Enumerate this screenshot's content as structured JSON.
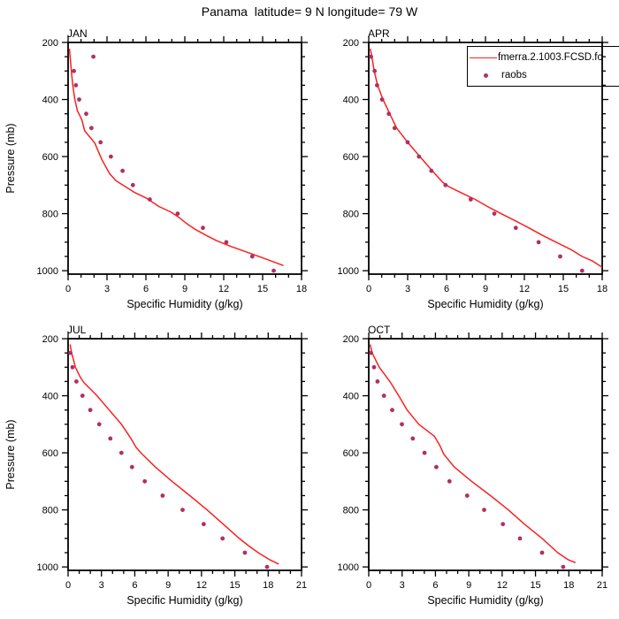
{
  "title": "Panama  latitude= 9 N longitude= 79 W",
  "axes": {
    "xlabel": "Specific Humidity (g/kg)",
    "ylabel": "Pressure (mb)",
    "y_axis_inverted": true
  },
  "colors": {
    "model_line": "#f92020",
    "raobs_marker": "#b03060",
    "frame": "#000000",
    "text": "#000000"
  },
  "legend": {
    "position": "top-right, clipped at figure edge",
    "items": [
      {
        "type": "line",
        "label": "fmerra.2.1003.FCSD.fc",
        "color": "#f92020"
      },
      {
        "type": "marker",
        "label": "raobs",
        "color": "#b03060"
      }
    ]
  },
  "chart_data": [
    {
      "month": "JAN",
      "type": "line+scatter",
      "x_range": [
        0,
        18
      ],
      "x_major_step": 3,
      "x_minor_step": 1,
      "y_range": [
        200,
        1000
      ],
      "y_major_step": 200,
      "y_minor_step": 50,
      "point_format": [
        "pressure_mb",
        "specific_humidity_g_per_kg"
      ],
      "series": [
        {
          "name": "fmerra.2.1003.FCSD.fc",
          "style": "line",
          "points": [
            [
              222,
              0.1
            ],
            [
              250,
              0.16
            ],
            [
              300,
              0.25
            ],
            [
              350,
              0.36
            ],
            [
              400,
              0.52
            ],
            [
              440,
              0.72
            ],
            [
              470,
              1.05
            ],
            [
              510,
              1.28
            ],
            [
              552,
              2.05
            ],
            [
              610,
              2.6
            ],
            [
              660,
              3.2
            ],
            [
              685,
              3.7
            ],
            [
              705,
              4.4
            ],
            [
              725,
              5.1
            ],
            [
              745,
              6.0
            ],
            [
              775,
              7.0
            ],
            [
              795,
              7.95
            ],
            [
              815,
              8.6
            ],
            [
              835,
              9.15
            ],
            [
              855,
              9.8
            ],
            [
              875,
              10.6
            ],
            [
              895,
              11.45
            ],
            [
              915,
              12.55
            ],
            [
              935,
              13.8
            ],
            [
              955,
              15.0
            ],
            [
              970,
              15.9
            ],
            [
              982,
              16.6
            ]
          ]
        },
        {
          "name": "raobs",
          "style": "scatter",
          "points": [
            [
              250,
              1.95
            ],
            [
              300,
              0.45
            ],
            [
              350,
              0.6
            ],
            [
              400,
              0.85
            ],
            [
              450,
              1.4
            ],
            [
              500,
              1.8
            ],
            [
              550,
              2.5
            ],
            [
              600,
              3.3
            ],
            [
              650,
              4.2
            ],
            [
              700,
              5.0
            ],
            [
              750,
              6.3
            ],
            [
              800,
              8.45
            ],
            [
              850,
              10.4
            ],
            [
              900,
              12.2
            ],
            [
              950,
              14.2
            ],
            [
              1000,
              15.85
            ]
          ]
        }
      ]
    },
    {
      "month": "APR",
      "type": "line+scatter",
      "x_range": [
        0,
        18
      ],
      "x_major_step": 3,
      "x_minor_step": 1,
      "y_range": [
        200,
        1000
      ],
      "y_major_step": 200,
      "y_minor_step": 50,
      "point_format": [
        "pressure_mb",
        "specific_humidity_g_per_kg"
      ],
      "series": [
        {
          "name": "fmerra.2.1003.FCSD.fc",
          "style": "line",
          "points": [
            [
              222,
              0.12
            ],
            [
              250,
              0.24
            ],
            [
              300,
              0.42
            ],
            [
              350,
              0.68
            ],
            [
              400,
              1.1
            ],
            [
              450,
              1.62
            ],
            [
              500,
              2.15
            ],
            [
              550,
              3.0
            ],
            [
              600,
              3.95
            ],
            [
              650,
              4.9
            ],
            [
              690,
              5.7
            ],
            [
              705,
              6.15
            ],
            [
              725,
              7.05
            ],
            [
              750,
              8.2
            ],
            [
              780,
              9.35
            ],
            [
              800,
              10.2
            ],
            [
              825,
              11.3
            ],
            [
              850,
              12.35
            ],
            [
              875,
              13.35
            ],
            [
              900,
              14.45
            ],
            [
              925,
              15.55
            ],
            [
              950,
              16.45
            ],
            [
              965,
              17.2
            ],
            [
              988,
              18.0
            ]
          ]
        },
        {
          "name": "raobs",
          "style": "scatter",
          "points": [
            [
              250,
              0.18
            ],
            [
              300,
              0.46
            ],
            [
              350,
              0.64
            ],
            [
              400,
              1.03
            ],
            [
              450,
              1.55
            ],
            [
              500,
              2.0
            ],
            [
              550,
              3.0
            ],
            [
              600,
              3.87
            ],
            [
              650,
              4.83
            ],
            [
              700,
              5.92
            ],
            [
              750,
              7.86
            ],
            [
              800,
              9.68
            ],
            [
              850,
              11.34
            ],
            [
              900,
              13.1
            ],
            [
              950,
              14.76
            ],
            [
              1000,
              16.45
            ]
          ]
        }
      ]
    },
    {
      "month": "JUL",
      "type": "line+scatter",
      "x_range": [
        0,
        21
      ],
      "x_major_step": 3,
      "x_minor_step": 1,
      "y_range": [
        200,
        1000
      ],
      "y_major_step": 200,
      "y_minor_step": 50,
      "point_format": [
        "pressure_mb",
        "specific_humidity_g_per_kg"
      ],
      "series": [
        {
          "name": "fmerra.2.1003.FCSD.fc",
          "style": "line",
          "points": [
            [
              220,
              0.18
            ],
            [
              250,
              0.32
            ],
            [
              300,
              0.66
            ],
            [
              335,
              1.1
            ],
            [
              355,
              1.45
            ],
            [
              400,
              2.6
            ],
            [
              450,
              3.7
            ],
            [
              500,
              4.8
            ],
            [
              535,
              5.4
            ],
            [
              553,
              5.7
            ],
            [
              580,
              6.1
            ],
            [
              600,
              6.55
            ],
            [
              650,
              7.85
            ],
            [
              700,
              9.35
            ],
            [
              750,
              10.95
            ],
            [
              800,
              12.5
            ],
            [
              850,
              13.95
            ],
            [
              900,
              15.4
            ],
            [
              925,
              16.2
            ],
            [
              950,
              17.1
            ],
            [
              975,
              18.15
            ],
            [
              990,
              18.95
            ]
          ]
        },
        {
          "name": "raobs",
          "style": "scatter",
          "points": [
            [
              250,
              0.2
            ],
            [
              300,
              0.4
            ],
            [
              350,
              0.75
            ],
            [
              400,
              1.3
            ],
            [
              450,
              2.0
            ],
            [
              500,
              2.8
            ],
            [
              550,
              3.8
            ],
            [
              600,
              4.8
            ],
            [
              650,
              5.75
            ],
            [
              700,
              6.9
            ],
            [
              750,
              8.5
            ],
            [
              800,
              10.3
            ],
            [
              850,
              12.2
            ],
            [
              900,
              13.9
            ],
            [
              950,
              15.9
            ],
            [
              1000,
              17.9
            ]
          ]
        }
      ]
    },
    {
      "month": "OCT",
      "type": "line+scatter",
      "x_range": [
        0,
        21
      ],
      "x_major_step": 3,
      "x_minor_step": 1,
      "y_range": [
        200,
        1000
      ],
      "y_major_step": 200,
      "y_minor_step": 50,
      "point_format": [
        "pressure_mb",
        "specific_humidity_g_per_kg"
      ],
      "series": [
        {
          "name": "fmerra.2.1003.FCSD.fc",
          "style": "line",
          "points": [
            [
              220,
              0.13
            ],
            [
              250,
              0.3
            ],
            [
              300,
              0.95
            ],
            [
              350,
              1.9
            ],
            [
              400,
              2.7
            ],
            [
              450,
              3.45
            ],
            [
              500,
              4.5
            ],
            [
              542,
              5.9
            ],
            [
              575,
              6.4
            ],
            [
              605,
              6.75
            ],
            [
              650,
              7.7
            ],
            [
              700,
              9.25
            ],
            [
              750,
              10.95
            ],
            [
              800,
              12.55
            ],
            [
              850,
              14.0
            ],
            [
              900,
              15.6
            ],
            [
              950,
              17.0
            ],
            [
              975,
              17.95
            ],
            [
              985,
              18.6
            ]
          ]
        },
        {
          "name": "raobs",
          "style": "scatter",
          "points": [
            [
              250,
              0.21
            ],
            [
              300,
              0.48
            ],
            [
              350,
              0.79
            ],
            [
              400,
              1.37
            ],
            [
              450,
              2.11
            ],
            [
              500,
              2.98
            ],
            [
              550,
              3.96
            ],
            [
              600,
              5.02
            ],
            [
              650,
              6.08
            ],
            [
              700,
              7.26
            ],
            [
              750,
              8.85
            ],
            [
              800,
              10.38
            ],
            [
              850,
              12.07
            ],
            [
              900,
              13.6
            ],
            [
              950,
              15.59
            ],
            [
              1000,
              17.49
            ]
          ]
        }
      ]
    }
  ]
}
